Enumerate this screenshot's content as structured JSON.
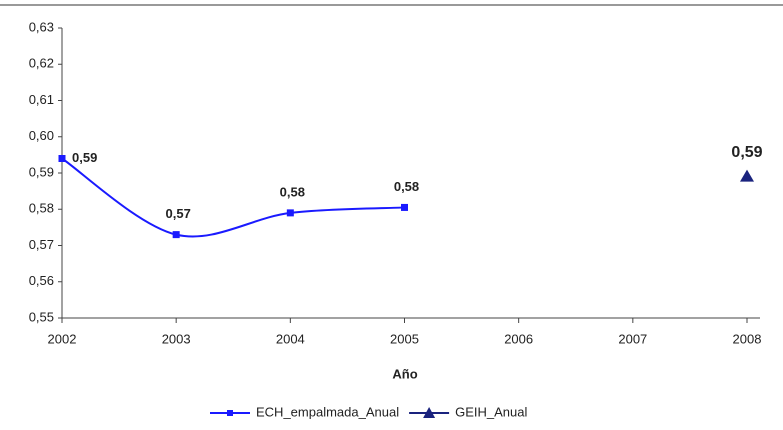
{
  "chart_data": {
    "type": "line",
    "xlabel": "Año",
    "x": [
      2002,
      2003,
      2004,
      2005,
      2006,
      2007,
      2008
    ],
    "xlim": [
      2002,
      2008
    ],
    "xticks": [
      2002,
      2003,
      2004,
      2005,
      2006,
      2007,
      2008
    ],
    "ylim": [
      0.55,
      0.63
    ],
    "yticks": [
      {
        "value": 0.55,
        "label": "0,55"
      },
      {
        "value": 0.56,
        "label": "0,56"
      },
      {
        "value": 0.57,
        "label": "0,57"
      },
      {
        "value": 0.58,
        "label": "0,58"
      },
      {
        "value": 0.59,
        "label": "0,59"
      },
      {
        "value": 0.6,
        "label": "0,60"
      },
      {
        "value": 0.61,
        "label": "0,61"
      },
      {
        "value": 0.62,
        "label": "0,62"
      },
      {
        "value": 0.63,
        "label": "0,63"
      }
    ],
    "grid": false,
    "legend": "bottom",
    "series": [
      {
        "name": "ECH_empalmada_Anual",
        "color": "#1a1aff",
        "marker": "square",
        "smooth": true,
        "values": [
          0.594,
          0.573,
          0.579,
          0.5805,
          null,
          null,
          null
        ],
        "value_labels": [
          "0,59",
          "0,57",
          "0,58",
          "0,58",
          null,
          null,
          null
        ]
      },
      {
        "name": "GEIH_Anual",
        "color": "#1a237e",
        "marker": "triangle",
        "smooth": false,
        "values": [
          null,
          null,
          null,
          null,
          null,
          null,
          0.589
        ],
        "value_labels": [
          null,
          null,
          null,
          null,
          null,
          null,
          "0,59"
        ]
      }
    ]
  }
}
